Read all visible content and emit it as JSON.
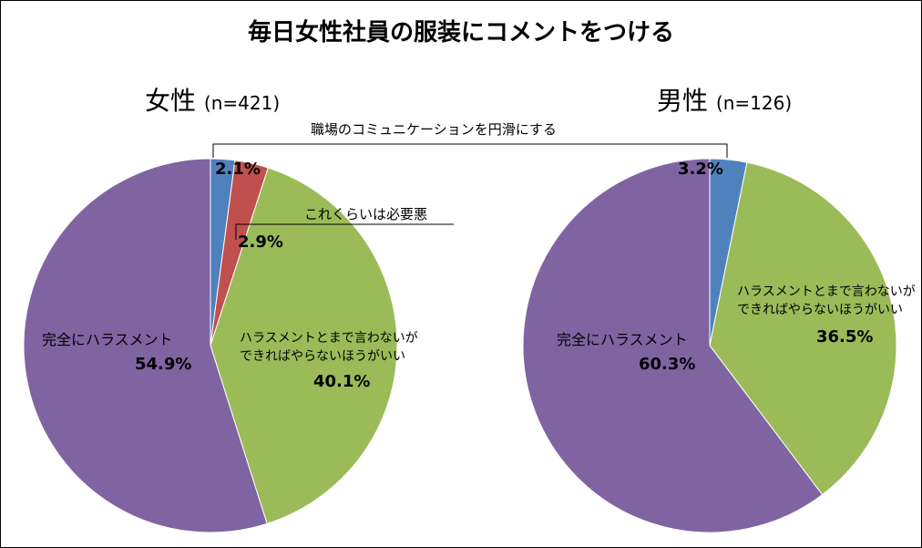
{
  "chart_data": [
    {
      "type": "pie",
      "title": "女性",
      "n_label": "(n=421)",
      "slices": [
        {
          "label": "職場のコミュニケーションを円滑にする",
          "value": 2.1,
          "pct_label": "2.1%",
          "color": "#4F81BD"
        },
        {
          "label": "これくらいは必要悪",
          "value": 2.9,
          "pct_label": "2.9%",
          "color": "#C0504D"
        },
        {
          "label": "ハラスメントとまで言わないができればやらないほうがいい",
          "value": 40.1,
          "pct_label": "40.1%",
          "color": "#9BBB59"
        },
        {
          "label": "完全にハラスメント",
          "value": 54.9,
          "pct_label": "54.9%",
          "color": "#8064A2"
        }
      ]
    },
    {
      "type": "pie",
      "title": "男性",
      "n_label": "(n=126)",
      "slices": [
        {
          "label": "職場のコミュニケーションを円滑にする",
          "value": 3.2,
          "pct_label": "3.2%",
          "color": "#4F81BD"
        },
        {
          "label": "ハラスメントとまで言わないができればやらないほうがいい",
          "value": 36.5,
          "pct_label": "36.5%",
          "color": "#9BBB59"
        },
        {
          "label": "完全にハラスメント",
          "value": 60.3,
          "pct_label": "60.3%",
          "color": "#8064A2"
        }
      ]
    }
  ],
  "title": "毎日女性社員の服装にコメントをつける",
  "labels": {
    "smooth": "職場のコミュニケーションを円滑にする",
    "necessary": "これくらいは必要悪",
    "mild1": "ハラスメントとまで言わないが",
    "mild2": "できればやらないほうがいい",
    "harass": "完全にハラスメント"
  }
}
